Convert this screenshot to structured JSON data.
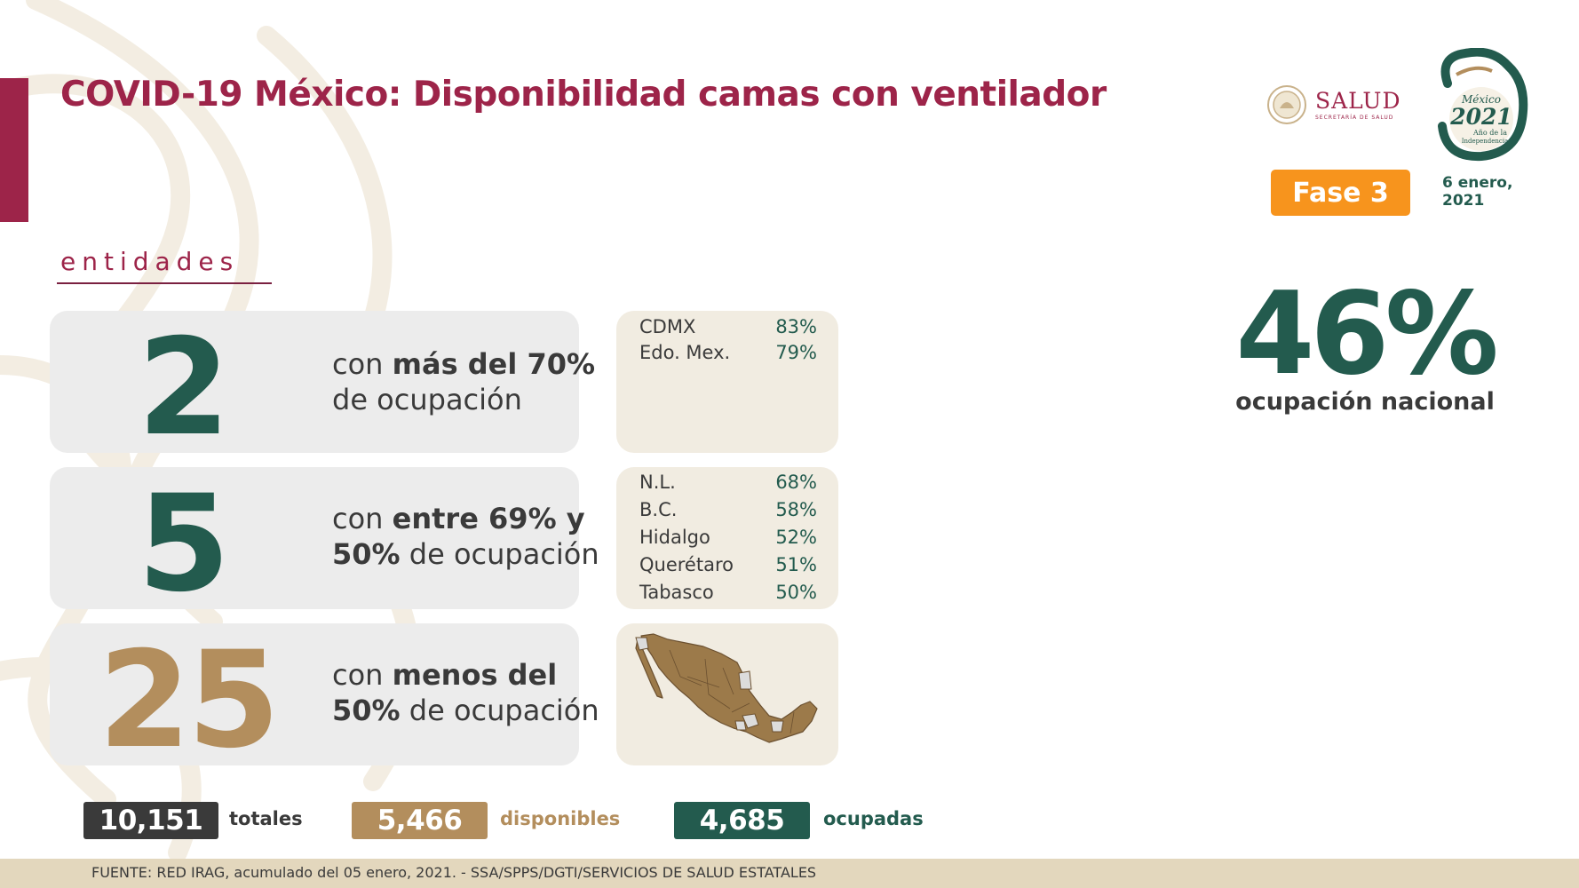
{
  "header": {
    "title": "COVID-19 México: Disponibilidad camas con ventilador",
    "salud_logo_text": "SALUD",
    "salud_logo_subtitle": "SECRETARÍA DE SALUD",
    "mexico_logo": {
      "line1": "México",
      "year": "2021",
      "line2": "Año de la",
      "line3": "Independencia"
    },
    "phase": "Fase 3",
    "date": "6 enero, 2021"
  },
  "section_label": "entidades",
  "rows": [
    {
      "count": "2",
      "text_pre": "con ",
      "text_bold": "más del 70%",
      "text_post": "de ocupación"
    },
    {
      "count": "5",
      "text_pre": "con ",
      "text_bold": "entre 69% y",
      "text_bold2": "50%",
      "text_post": " de ocupación"
    },
    {
      "count": "25",
      "text_pre": "con ",
      "text_bold": "menos del",
      "text_bold2": "50%",
      "text_post": " de ocupación"
    }
  ],
  "high_occupancy": [
    {
      "state": "CDMX",
      "pct": "83%"
    },
    {
      "state": "Edo. Mex.",
      "pct": "79%"
    }
  ],
  "mid_occupancy": [
    {
      "state": "N.L.",
      "pct": "68%"
    },
    {
      "state": "B.C.",
      "pct": "58%"
    },
    {
      "state": "Hidalgo",
      "pct": "52%"
    },
    {
      "state": "Querétaro",
      "pct": "51%"
    },
    {
      "state": "Tabasco",
      "pct": "50%"
    }
  ],
  "national": {
    "pct": "46%",
    "label": "ocupación nacional"
  },
  "totals": [
    {
      "value": "10,151",
      "label": "totales",
      "color": "#3a3a3a"
    },
    {
      "value": "5,466",
      "label": "disponibles",
      "color": "#b38e5d"
    },
    {
      "value": "4,685",
      "label": "ocupadas",
      "color": "#235b4e"
    }
  ],
  "footer": "FUENTE: RED IRAG, acumulado del 05 enero, 2021. -  SSA/SPPS/DGTI/SERVICIOS DE SALUD ESTATALES",
  "colors": {
    "brand": "#9d2449",
    "green": "#235b4e",
    "gold": "#b38e5d",
    "orange": "#f7941d"
  }
}
